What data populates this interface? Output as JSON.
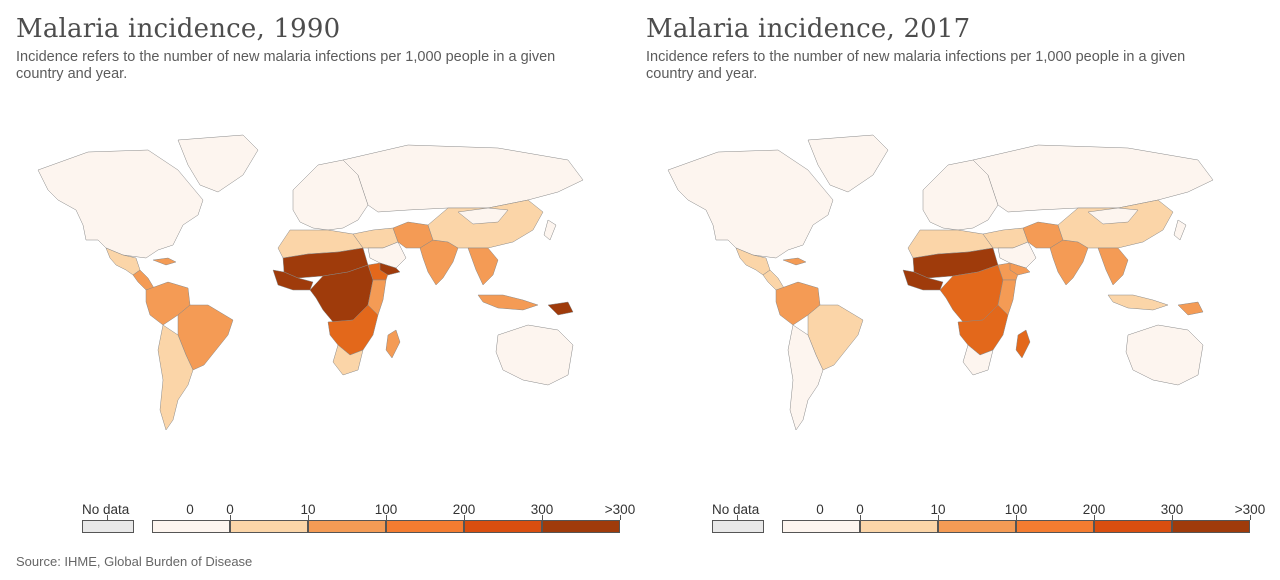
{
  "panels": [
    {
      "title": "Malaria incidence, 1990",
      "subtitle": "Incidence refers to the number of new malaria infections per 1,000 people in a given country and year.",
      "regions": {
        "north_america": "#fdf5ef",
        "greenland": "#fdf5ef",
        "mexico_central": "#fbd5a8",
        "central_america": "#f49b55",
        "caribbean": "#f49b55",
        "south_america_north": "#f49b55",
        "brazil": "#f49b55",
        "south_america_south": "#fbd5a8",
        "europe": "#fdf5ef",
        "russia": "#fdf5ef",
        "north_africa": "#fbd5a8",
        "sahel": "#9f3b0b",
        "west_africa": "#9f3b0b",
        "central_africa": "#9f3b0b",
        "east_africa": "#f49b55",
        "horn_africa": "#e3681b",
        "southern_africa": "#e3681b",
        "south_africa": "#fbd5a8",
        "madagascar": "#f49b55",
        "middle_east": "#fbd5a8",
        "arabia": "#fdf5ef",
        "yemen": "#9f3b0b",
        "iran_afghan": "#f49b55",
        "india": "#f49b55",
        "china": "#fbd5a8",
        "mongolia": "#fdf5ef",
        "southeast_asia": "#f49b55",
        "indonesia": "#f49b55",
        "png": "#9f3b0b",
        "australia": "#fdf5ef",
        "japan": "#fdf5ef"
      }
    },
    {
      "title": "Malaria incidence, 2017",
      "subtitle": "Incidence refers to the number of new malaria infections per 1,000 people in a given country and year.",
      "regions": {
        "north_america": "#fdf5ef",
        "greenland": "#fdf5ef",
        "mexico_central": "#fbd5a8",
        "central_america": "#fbd5a8",
        "caribbean": "#f49b55",
        "south_america_north": "#f49b55",
        "brazil": "#fbd5a8",
        "south_america_south": "#fdf5ef",
        "europe": "#fdf5ef",
        "russia": "#fdf5ef",
        "north_africa": "#fbd5a8",
        "sahel": "#9f3b0b",
        "west_africa": "#9f3b0b",
        "central_africa": "#e3681b",
        "east_africa": "#f49b55",
        "horn_africa": "#f49b55",
        "southern_africa": "#e3681b",
        "south_africa": "#fdf5ef",
        "madagascar": "#e3681b",
        "middle_east": "#fbd5a8",
        "arabia": "#fdf5ef",
        "yemen": "#f49b55",
        "iran_afghan": "#f49b55",
        "india": "#f49b55",
        "china": "#fbd5a8",
        "mongolia": "#fdf5ef",
        "southeast_asia": "#f49b55",
        "indonesia": "#fbd5a8",
        "png": "#f49b55",
        "australia": "#fdf5ef",
        "japan": "#fdf5ef"
      }
    }
  ],
  "legend": {
    "no_data_label": "No data",
    "no_data_color": "#e8e8e8",
    "tick_labels": [
      "0",
      "0",
      "10",
      "100",
      "200",
      "300",
      ">300"
    ],
    "bin_colors": [
      "#fdf5ef",
      "#fbd5a8",
      "#f49b55",
      "#f47c30",
      "#d94e0f",
      "#9f3b0b"
    ]
  },
  "source": "Source: IHME, Global Burden of Disease"
}
